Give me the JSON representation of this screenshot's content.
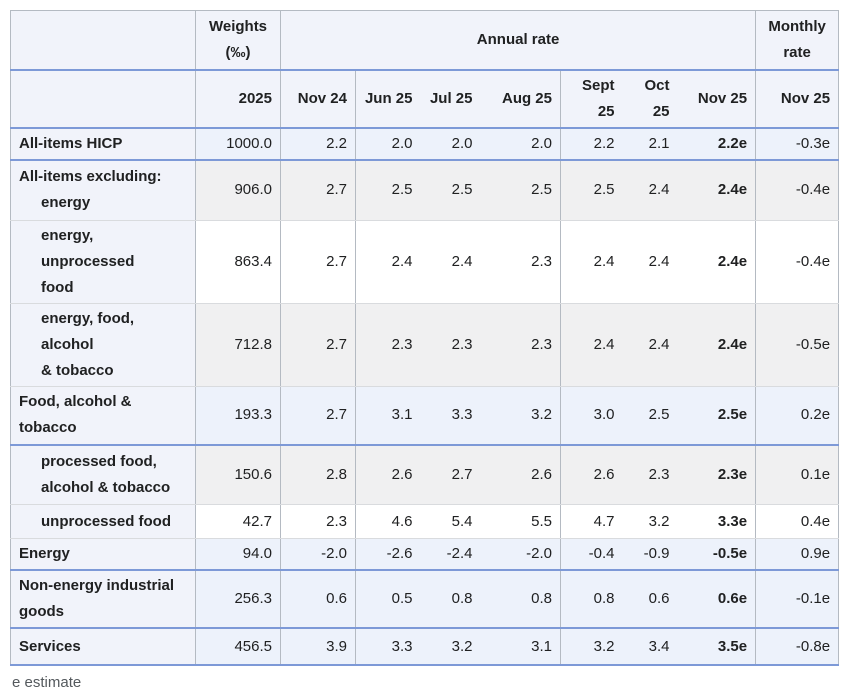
{
  "chart_data": {
    "type": "table",
    "header": {
      "corner": "",
      "weights_line1": "Weights",
      "weights_line2": "(‰)",
      "annual_rate_label": "Annual rate",
      "monthly_line1": "Monthly",
      "monthly_line2": "rate",
      "weights_year": "2025",
      "annual_months": [
        "Nov 24",
        "Jun 25",
        "Jul 25",
        "Aug 25",
        "Sept 25",
        "Oct 25",
        "Nov 25"
      ],
      "monthly_month": "Nov 25"
    },
    "rows": [
      {
        "label": "All-items HICP",
        "label_lines": [
          {
            "text": "All-items HICP",
            "indent": false
          }
        ],
        "weight": "1000.0",
        "annual": [
          "2.2",
          "2.0",
          "2.0",
          "2.0",
          "2.2",
          "2.1",
          "2.2e"
        ],
        "monthly": "-0.3e",
        "tint": "blue",
        "divider": "blue"
      },
      {
        "label": "All-items excluding: energy",
        "label_lines": [
          {
            "text": "All-items excluding:",
            "indent": false
          },
          {
            "text": "energy",
            "indent": true
          }
        ],
        "weight": "906.0",
        "annual": [
          "2.7",
          "2.5",
          "2.5",
          "2.5",
          "2.5",
          "2.4",
          "2.4e"
        ],
        "monthly": "-0.4e",
        "tint": "gray",
        "divider": "gray"
      },
      {
        "label": "energy, unprocessed food",
        "label_lines": [
          {
            "text": "energy, unprocessed",
            "indent": true
          },
          {
            "text": "food",
            "indent": true
          }
        ],
        "weight": "863.4",
        "annual": [
          "2.7",
          "2.4",
          "2.4",
          "2.3",
          "2.4",
          "2.4",
          "2.4e"
        ],
        "monthly": "-0.4e",
        "tint": "white",
        "divider": "gray"
      },
      {
        "label": "energy, food, alcohol & tobacco",
        "label_lines": [
          {
            "text": "energy, food, alcohol",
            "indent": true
          },
          {
            "text": "& tobacco",
            "indent": true
          }
        ],
        "weight": "712.8",
        "annual": [
          "2.7",
          "2.3",
          "2.3",
          "2.3",
          "2.4",
          "2.4",
          "2.4e"
        ],
        "monthly": "-0.5e",
        "tint": "gray",
        "divider": "gray"
      },
      {
        "label": "Food, alcohol & tobacco",
        "label_lines": [
          {
            "text": "Food, alcohol &",
            "indent": false
          },
          {
            "text": "tobacco",
            "indent": false
          }
        ],
        "weight": "193.3",
        "annual": [
          "2.7",
          "3.1",
          "3.3",
          "3.2",
          "3.0",
          "2.5",
          "2.5e"
        ],
        "monthly": "0.2e",
        "tint": "blue",
        "divider": "blue"
      },
      {
        "label": "processed food, alcohol & tobacco",
        "label_lines": [
          {
            "text": "processed food,",
            "indent": true
          },
          {
            "text": "alcohol & tobacco",
            "indent": true
          }
        ],
        "weight": "150.6",
        "annual": [
          "2.8",
          "2.6",
          "2.7",
          "2.6",
          "2.6",
          "2.3",
          "2.3e"
        ],
        "monthly": "0.1e",
        "tint": "gray",
        "divider": "gray"
      },
      {
        "label": "unprocessed food",
        "label_lines": [
          {
            "text": "unprocessed food",
            "indent": true
          }
        ],
        "weight": "42.7",
        "annual": [
          "2.3",
          "4.6",
          "5.4",
          "5.5",
          "4.7",
          "3.2",
          "3.3e"
        ],
        "monthly": "0.4e",
        "tint": "white",
        "divider": "gray"
      },
      {
        "label": "Energy",
        "label_lines": [
          {
            "text": "Energy",
            "indent": false
          }
        ],
        "weight": "94.0",
        "annual": [
          "-2.0",
          "-2.6",
          "-2.4",
          "-2.0",
          "-0.4",
          "-0.9",
          "-0.5e"
        ],
        "monthly": "0.9e",
        "tint": "blue",
        "divider": "blue"
      },
      {
        "label": "Non-energy industrial goods",
        "label_lines": [
          {
            "text": "Non-energy industrial",
            "indent": false
          },
          {
            "text": "goods",
            "indent": false
          }
        ],
        "weight": "256.3",
        "annual": [
          "0.6",
          "0.5",
          "0.8",
          "0.8",
          "0.8",
          "0.6",
          "0.6e"
        ],
        "monthly": "-0.1e",
        "tint": "blue",
        "divider": "blue"
      },
      {
        "label": "Services",
        "label_lines": [
          {
            "text": "Services",
            "indent": false
          }
        ],
        "weight": "456.5",
        "annual": [
          "3.9",
          "3.3",
          "3.2",
          "3.1",
          "3.2",
          "3.4",
          "3.5e"
        ],
        "monthly": "-0.8e",
        "tint": "blue",
        "divider": "blue"
      }
    ],
    "footnote": "e estimate",
    "layout": {
      "bold_column": "Nov 25 annual",
      "grid": "partial",
      "group_borders_color": "#7d99d7"
    },
    "colors": {
      "accent_line": "#7d99d7",
      "minor_line": "#d9dbde",
      "vertical_line": "#b4bac2",
      "label_column_bg": "#f1f3fa",
      "highlight_row_bg": "#edf2fb",
      "gray_row_bg": "#f0f0f1",
      "white_row_bg": "#ffffff",
      "text": "#202122",
      "footnote_text": "#54595d"
    }
  }
}
